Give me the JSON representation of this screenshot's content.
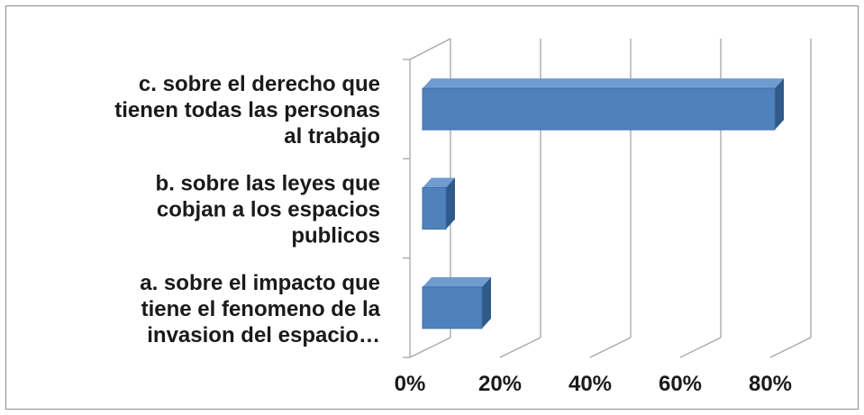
{
  "chart_data": {
    "type": "bar",
    "orientation": "horizontal",
    "style": "3d",
    "categories": [
      [
        "a. sobre el impacto que",
        "tiene el fenomeno de la",
        "invasion del espacio…"
      ],
      [
        "b. sobre las leyes que",
        "cobjan a los espacios",
        "publicos"
      ],
      [
        "c. sobre el derecho que",
        "tienen todas las personas",
        "al trabajo"
      ]
    ],
    "values": [
      0.16,
      0.08,
      0.81
    ],
    "xlim": [
      0,
      0.8
    ],
    "xticks": [
      "0%",
      "20%",
      "40%",
      "60%",
      "80%"
    ],
    "title": "",
    "xlabel": "",
    "ylabel": "",
    "grid": true,
    "legend": "none",
    "colors": {
      "bar_front": "#4f81bd",
      "bar_top": "#6f9bd1",
      "bar_side": "#2f5a8a",
      "grid": "#a6a6a6"
    }
  }
}
